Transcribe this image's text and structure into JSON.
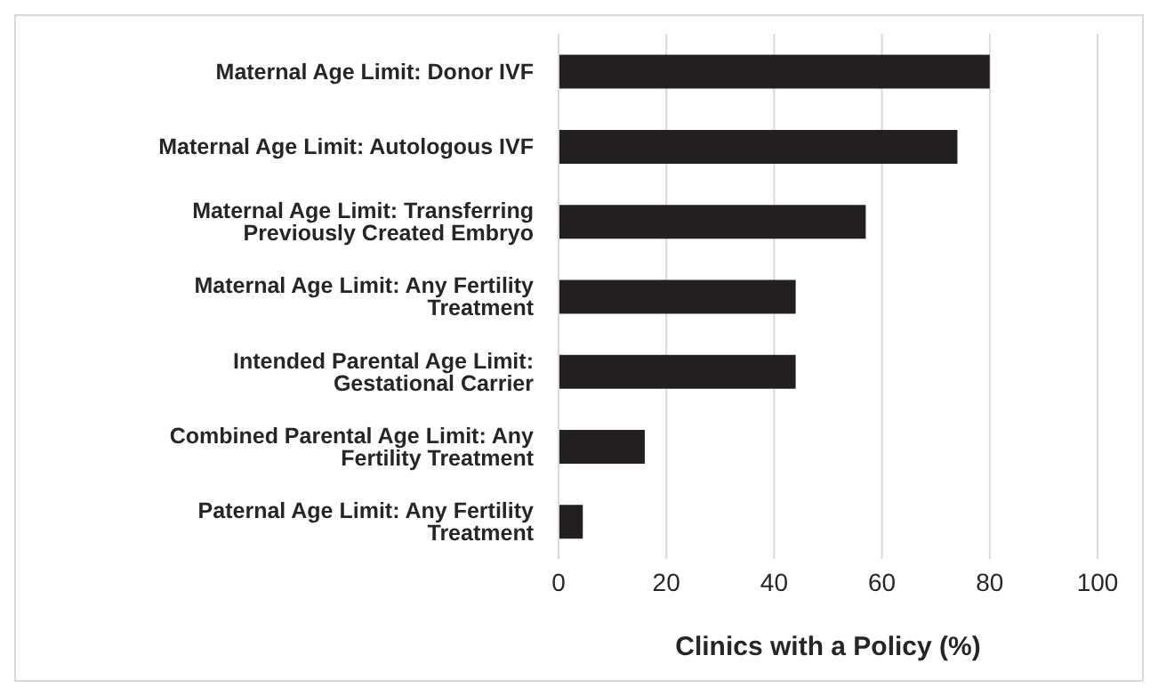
{
  "chart_data": {
    "type": "bar",
    "orientation": "horizontal",
    "categories": [
      "Maternal Age Limit: Donor IVF",
      "Maternal Age Limit: Autologous IVF",
      "Maternal Age Limit: Transferring Previously Created Embryo",
      "Maternal Age Limit: Any Fertility Treatment",
      "Intended Parental Age Limit: Gestational Carrier",
      "Combined Parental Age Limit: Any Fertility Treatment",
      "Paternal Age Limit: Any Fertility Treatment"
    ],
    "values": [
      80,
      74,
      57,
      44,
      44,
      16,
      4.5
    ],
    "color": "#231f20",
    "xlabel": "Clinics with a Policy (%)",
    "xlim": [
      0,
      100
    ],
    "xticks": [
      0,
      20,
      40,
      60,
      80,
      100
    ],
    "grid": "x"
  }
}
